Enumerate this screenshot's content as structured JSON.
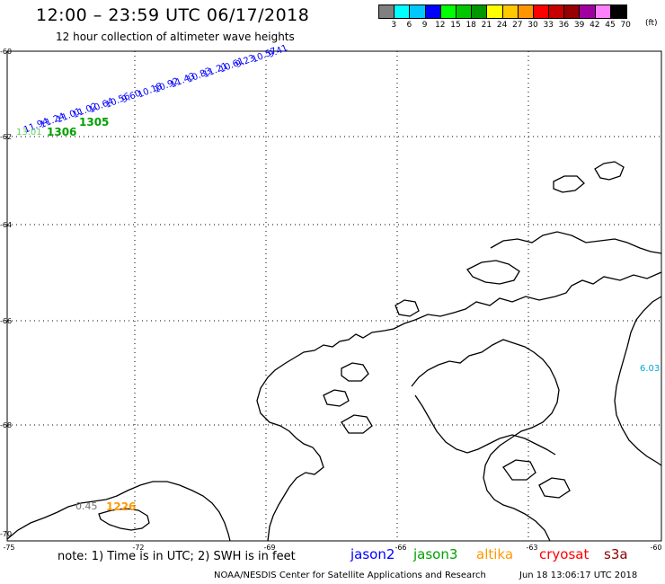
{
  "title": "12:00 – 23:59 UTC 06/17/2018",
  "subtitle": "12 hour collection of altimeter wave heights",
  "legend": {
    "unit": "(ft)",
    "bins": [
      {
        "label": "3",
        "color": "#808080"
      },
      {
        "label": "6",
        "color": "#00ffff"
      },
      {
        "label": "9",
        "color": "#00c8ff"
      },
      {
        "label": "12",
        "color": "#0000ff"
      },
      {
        "label": "15",
        "color": "#00ff00"
      },
      {
        "label": "18",
        "color": "#00c800"
      },
      {
        "label": "21",
        "color": "#009600"
      },
      {
        "label": "24",
        "color": "#ffff00"
      },
      {
        "label": "27",
        "color": "#ffc800"
      },
      {
        "label": "30",
        "color": "#ff9600"
      },
      {
        "label": "33",
        "color": "#ff0000"
      },
      {
        "label": "36",
        "color": "#c80000"
      },
      {
        "label": "39",
        "color": "#960000"
      },
      {
        "label": "42",
        "color": "#a000a0"
      },
      {
        "label": "45",
        "color": "#ff80ff"
      },
      {
        "label": "70",
        "color": "#000000"
      }
    ]
  },
  "axes": {
    "lat_labels": [
      "-60",
      "-62",
      "-64",
      "-66",
      "-68",
      "-70"
    ],
    "lon_labels": [
      "-75",
      "-72",
      "-69",
      "-66",
      "-63",
      "-60"
    ]
  },
  "tracks": {
    "jason2_values": [
      "11.94",
      "11.24",
      "11.01",
      "11.02",
      "10.64",
      "10.56",
      "9.60",
      "10.18",
      "10.92",
      "11.43",
      "10.83",
      "11.21",
      "10.61",
      "9.23",
      "10.57",
      "9.41"
    ],
    "jason2_time": "1306",
    "jason3_values": [
      "13.01"
    ],
    "jason3_time": "1305",
    "altika_time": "1226",
    "altika_value": "0.45",
    "east_value": "6.03"
  },
  "colors": {
    "jason2": "#0000ff",
    "jason3": "#00a000",
    "altika": "#ff9900",
    "cryosat": "#ff0000",
    "s3a": "#8b0000",
    "grey_value": "#707070",
    "cyan_value": "#00a8d8"
  },
  "footer": {
    "note": "note: 1) Time is in UTC; 2) SWH is in feet",
    "satellites": [
      "jason2",
      "jason3",
      "altika",
      "cryosat",
      "s3a"
    ],
    "credit": "NOAA/NESDIS Center for Satellite Applications and Research",
    "timestamp": "Jun 18 13:06:17 UTC 2018"
  }
}
